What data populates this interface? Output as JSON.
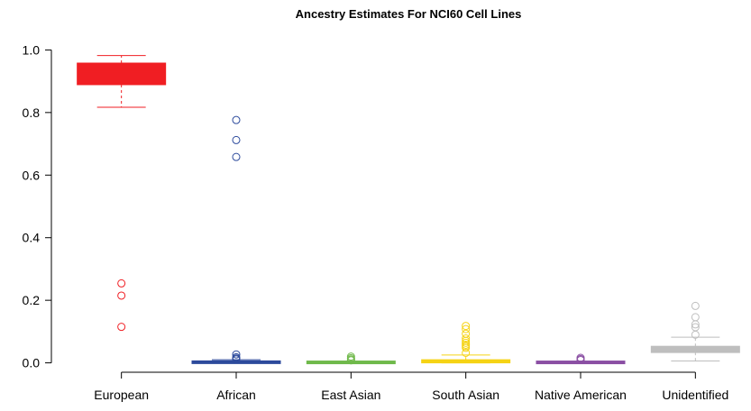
{
  "chart_data": {
    "type": "box",
    "title": "Ancestry Estimates For NCI60 Cell Lines",
    "xlabel": "",
    "ylabel": "",
    "ylim": [
      -0.03,
      1.03
    ],
    "yticks": [
      0.0,
      0.2,
      0.4,
      0.6,
      0.8,
      1.0
    ],
    "ytick_labels": [
      "0.0",
      "0.2",
      "0.4",
      "0.6",
      "0.8",
      "1.0"
    ],
    "grid": false,
    "categories": [
      "European",
      "African",
      "East Asian",
      "South Asian",
      "Native American",
      "Unidentified"
    ],
    "series": [
      {
        "color": "#f01e23",
        "whisker_low": 0.817,
        "q1": 0.889,
        "median": 0.93,
        "q3": 0.958,
        "whisker_high": 0.982,
        "outliers": [
          0.254,
          0.215,
          0.115
        ]
      },
      {
        "color": "#2c4a9c",
        "whisker_low": 0.0,
        "q1": 0.0,
        "median": 0.002,
        "q3": 0.004,
        "whisker_high": 0.01,
        "outliers": [
          0.776,
          0.712,
          0.658,
          0.027,
          0.018,
          0.014,
          0.011
        ]
      },
      {
        "color": "#6fb94a",
        "whisker_low": 0.0,
        "q1": 0.0,
        "median": 0.001,
        "q3": 0.003,
        "whisker_high": 0.005,
        "outliers": [
          0.02,
          0.015,
          0.011,
          0.008
        ]
      },
      {
        "color": "#f5d315",
        "whisker_low": 0.0,
        "q1": 0.0,
        "median": 0.004,
        "q3": 0.01,
        "whisker_high": 0.025,
        "outliers": [
          0.118,
          0.108,
          0.093,
          0.078,
          0.07,
          0.064,
          0.058,
          0.053,
          0.048,
          0.032
        ]
      },
      {
        "color": "#8a4fa3",
        "whisker_low": 0.0,
        "q1": 0.0,
        "median": 0.001,
        "q3": 0.003,
        "whisker_high": 0.005,
        "outliers": [
          0.016,
          0.012,
          0.009
        ]
      },
      {
        "color": "#bebebe",
        "whisker_low": 0.006,
        "q1": 0.033,
        "median": 0.043,
        "q3": 0.053,
        "whisker_high": 0.082,
        "outliers": [
          0.182,
          0.146,
          0.123,
          0.114,
          0.09
        ]
      }
    ]
  }
}
